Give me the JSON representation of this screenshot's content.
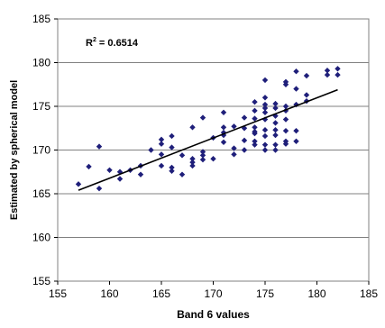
{
  "chart_data": {
    "type": "scatter",
    "title": "",
    "xlabel": "Band 6 values",
    "ylabel": "Estimated by spherical model",
    "xlim": [
      155,
      185
    ],
    "ylim": [
      155,
      185
    ],
    "xticks": [
      155,
      160,
      165,
      170,
      175,
      180,
      185
    ],
    "yticks": [
      155,
      160,
      165,
      170,
      175,
      180,
      185
    ],
    "grid_y": true,
    "grid_x": false,
    "annotation": {
      "text_main": "R",
      "superscript": "2",
      "text_rest": " = 0.6514"
    },
    "colors": {
      "points": "#1f1f7a",
      "trendline": "#000000",
      "grid": "#808080"
    },
    "trendline": {
      "x": [
        157,
        182
      ],
      "y": [
        165.4,
        176.9
      ]
    },
    "series": [
      {
        "points": [
          [
            157,
            166.1
          ],
          [
            158,
            168.1
          ],
          [
            159,
            170.4
          ],
          [
            159,
            165.6
          ],
          [
            160,
            167.7
          ],
          [
            161,
            167.5
          ],
          [
            161,
            166.7
          ],
          [
            162,
            167.7
          ],
          [
            163,
            167.2
          ],
          [
            163,
            168.2
          ],
          [
            164,
            170.0
          ],
          [
            165,
            171.2
          ],
          [
            165,
            170.7
          ],
          [
            165,
            169.5
          ],
          [
            165,
            168.2
          ],
          [
            166,
            170.3
          ],
          [
            166,
            171.6
          ],
          [
            166,
            168.0
          ],
          [
            166,
            167.6
          ],
          [
            167,
            169.4
          ],
          [
            167,
            167.2
          ],
          [
            168,
            172.6
          ],
          [
            168,
            169.0
          ],
          [
            168,
            168.6
          ],
          [
            168,
            168.2
          ],
          [
            169,
            173.7
          ],
          [
            169,
            169.4
          ],
          [
            169,
            168.9
          ],
          [
            169,
            169.8
          ],
          [
            170,
            171.4
          ],
          [
            170,
            169.0
          ],
          [
            171,
            174.3
          ],
          [
            171,
            172.6
          ],
          [
            171,
            171.7
          ],
          [
            171,
            170.9
          ],
          [
            171,
            172.0
          ],
          [
            172,
            172.7
          ],
          [
            172,
            170.2
          ],
          [
            172,
            169.5
          ],
          [
            173,
            173.7
          ],
          [
            173,
            172.5
          ],
          [
            173,
            171.1
          ],
          [
            173,
            170.0
          ],
          [
            174,
            175.5
          ],
          [
            174,
            174.5
          ],
          [
            174,
            173.6
          ],
          [
            174,
            172.6
          ],
          [
            174,
            171.9
          ],
          [
            174,
            171.0
          ],
          [
            174,
            170.6
          ],
          [
            174,
            172.1
          ],
          [
            175,
            178.0
          ],
          [
            175,
            176.0
          ],
          [
            175,
            175.2
          ],
          [
            175,
            174.8
          ],
          [
            175,
            174.3
          ],
          [
            175,
            173.5
          ],
          [
            175,
            172.3
          ],
          [
            175,
            171.6
          ],
          [
            175,
            170.6
          ],
          [
            175,
            170.0
          ],
          [
            176,
            175.3
          ],
          [
            176,
            174.8
          ],
          [
            176,
            173.9
          ],
          [
            176,
            173.1
          ],
          [
            176,
            172.3
          ],
          [
            176,
            171.7
          ],
          [
            176,
            170.6
          ],
          [
            176,
            170.0
          ],
          [
            177,
            177.8
          ],
          [
            177,
            177.5
          ],
          [
            177,
            175.0
          ],
          [
            177,
            174.5
          ],
          [
            177,
            173.5
          ],
          [
            177,
            172.2
          ],
          [
            177,
            171.0
          ],
          [
            177,
            170.7
          ],
          [
            178,
            179.0
          ],
          [
            178,
            177.0
          ],
          [
            178,
            175.2
          ],
          [
            178,
            172.2
          ],
          [
            178,
            171.0
          ],
          [
            179,
            178.5
          ],
          [
            179,
            176.3
          ],
          [
            179,
            175.6
          ],
          [
            181,
            179.1
          ],
          [
            181,
            178.6
          ],
          [
            182,
            179.3
          ],
          [
            182,
            178.6
          ]
        ]
      }
    ]
  }
}
